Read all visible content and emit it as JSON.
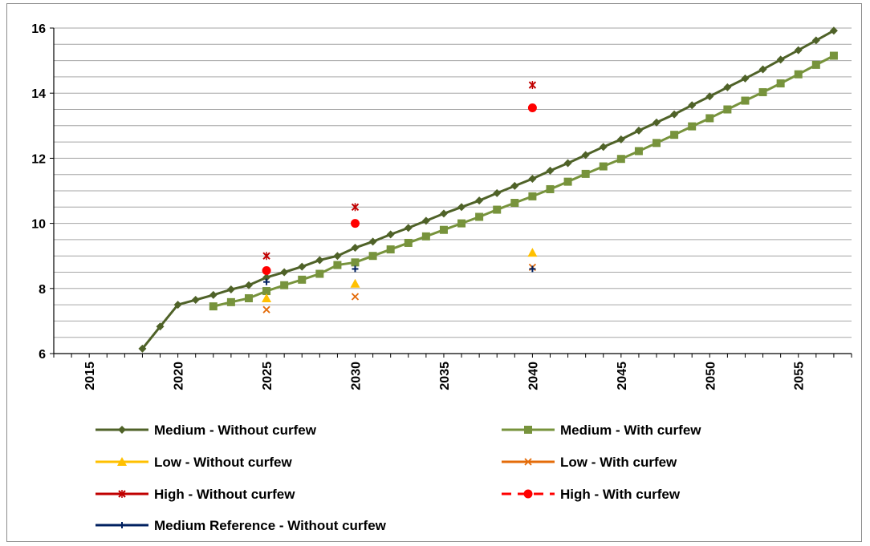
{
  "chart_data": {
    "type": "line",
    "title": "",
    "xlabel": "",
    "ylabel": "",
    "xlim": [
      2013,
      2058
    ],
    "ylim": [
      6,
      16
    ],
    "x_ticks": [
      2015,
      2020,
      2025,
      2030,
      2035,
      2040,
      2045,
      2050,
      2055
    ],
    "x_tick_labels": [
      "2015",
      "2020",
      "2025",
      "2030",
      "2035",
      "2040",
      "2045",
      "2050",
      "2055"
    ],
    "y_ticks": [
      6,
      8,
      10,
      12,
      14,
      16
    ],
    "y_tick_labels": [
      "6",
      "8",
      "10",
      "12",
      "14",
      "16"
    ],
    "minor_gridline_step": 0.5,
    "grid": true,
    "legend_position": "bottom",
    "series": [
      {
        "name": "Medium - Without curfew",
        "color": "#4f6228",
        "marker": "diamond",
        "line": "solid",
        "x": [
          2018,
          2019,
          2020,
          2021,
          2022,
          2023,
          2024,
          2025,
          2026,
          2027,
          2028,
          2029,
          2030,
          2031,
          2032,
          2033,
          2034,
          2035,
          2036,
          2037,
          2038,
          2039,
          2040,
          2041,
          2042,
          2043,
          2044,
          2045,
          2046,
          2047,
          2048,
          2049,
          2050,
          2051,
          2052,
          2053,
          2054,
          2055,
          2056,
          2057
        ],
        "y": [
          6.15,
          6.83,
          7.5,
          7.65,
          7.8,
          7.97,
          8.1,
          8.34,
          8.5,
          8.67,
          8.87,
          9.0,
          9.25,
          9.44,
          9.66,
          9.86,
          10.08,
          10.3,
          10.5,
          10.7,
          10.93,
          11.15,
          11.37,
          11.62,
          11.85,
          12.1,
          12.35,
          12.58,
          12.85,
          13.1,
          13.35,
          13.63,
          13.9,
          14.18,
          14.45,
          14.73,
          15.03,
          15.32,
          15.62,
          15.92
        ]
      },
      {
        "name": "Medium - With curfew",
        "color": "#77933c",
        "marker": "square",
        "line": "solid",
        "x": [
          2022,
          2023,
          2024,
          2025,
          2026,
          2027,
          2028,
          2029,
          2030,
          2031,
          2032,
          2033,
          2034,
          2035,
          2036,
          2037,
          2038,
          2039,
          2040,
          2041,
          2042,
          2043,
          2044,
          2045,
          2046,
          2047,
          2048,
          2049,
          2050,
          2051,
          2052,
          2053,
          2054,
          2055,
          2056,
          2057
        ],
        "y": [
          7.45,
          7.58,
          7.7,
          7.92,
          8.1,
          8.27,
          8.45,
          8.72,
          8.8,
          9.0,
          9.2,
          9.4,
          9.6,
          9.8,
          10.0,
          10.2,
          10.42,
          10.63,
          10.83,
          11.05,
          11.28,
          11.52,
          11.75,
          11.98,
          12.22,
          12.47,
          12.72,
          12.98,
          13.23,
          13.5,
          13.77,
          14.03,
          14.3,
          14.58,
          14.87,
          15.15
        ]
      },
      {
        "name": "Low - Without curfew",
        "color": "#ffc000",
        "marker": "triangle",
        "line": "solid",
        "x": [
          2025,
          2030,
          2040
        ],
        "y": [
          7.7,
          8.15,
          9.1
        ]
      },
      {
        "name": "Low - With curfew",
        "color": "#e46c0a",
        "marker": "x",
        "line": "solid",
        "x": [
          2025,
          2030,
          2040
        ],
        "y": [
          7.35,
          7.75,
          8.65
        ]
      },
      {
        "name": "High - Without curfew",
        "color": "#c00000",
        "marker": "star",
        "line": "solid",
        "x": [
          2025,
          2030,
          2040
        ],
        "y": [
          9.0,
          10.5,
          14.25
        ]
      },
      {
        "name": "High - With curfew",
        "color": "#ff0000",
        "marker": "circle",
        "line": "dashed",
        "x": [
          2025,
          2030,
          2040
        ],
        "y": [
          8.55,
          10.0,
          13.55
        ]
      },
      {
        "name": "Medium Reference - Without curfew",
        "color": "#002060",
        "marker": "plus",
        "line": "solid",
        "x": [
          2025,
          2030,
          2040
        ],
        "y": [
          8.2,
          8.6,
          8.6
        ]
      }
    ]
  }
}
